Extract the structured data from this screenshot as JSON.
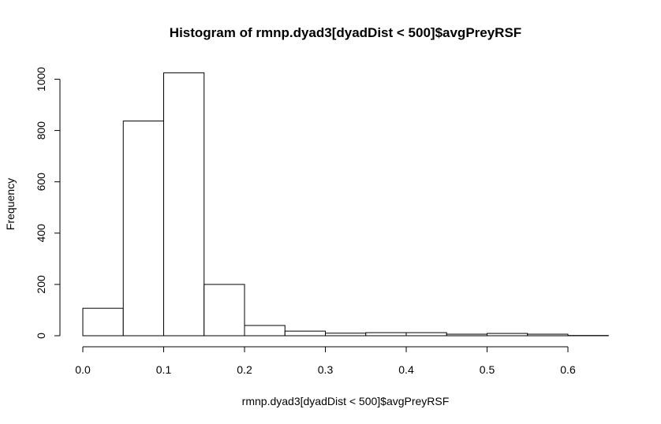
{
  "chart_data": {
    "type": "histogram",
    "title": "Histogram of rmnp.dyad3[dyadDist < 500]$avgPreyRSF",
    "xlabel": "rmnp.dyad3[dyadDist < 500]$avgPreyRSF",
    "ylabel": "Frequency",
    "bin_width": 0.05,
    "bins": [
      {
        "start": 0.0,
        "end": 0.05,
        "count": 107
      },
      {
        "start": 0.05,
        "end": 0.1,
        "count": 837
      },
      {
        "start": 0.1,
        "end": 0.15,
        "count": 1025
      },
      {
        "start": 0.15,
        "end": 0.2,
        "count": 200
      },
      {
        "start": 0.2,
        "end": 0.25,
        "count": 40
      },
      {
        "start": 0.25,
        "end": 0.3,
        "count": 18
      },
      {
        "start": 0.3,
        "end": 0.35,
        "count": 10
      },
      {
        "start": 0.35,
        "end": 0.4,
        "count": 12
      },
      {
        "start": 0.4,
        "end": 0.45,
        "count": 12
      },
      {
        "start": 0.45,
        "end": 0.5,
        "count": 6
      },
      {
        "start": 0.5,
        "end": 0.55,
        "count": 9
      },
      {
        "start": 0.55,
        "end": 0.6,
        "count": 6
      },
      {
        "start": 0.6,
        "end": 0.65,
        "count": 1
      }
    ],
    "xticks": [
      0.0,
      0.1,
      0.2,
      0.3,
      0.4,
      0.5,
      0.6
    ],
    "xtick_labels": [
      "0.0",
      "0.1",
      "0.2",
      "0.3",
      "0.4",
      "0.5",
      "0.6"
    ],
    "yticks": [
      0,
      200,
      400,
      600,
      800,
      1000
    ],
    "ytick_labels": [
      "0",
      "200",
      "400",
      "600",
      "800",
      "1000"
    ],
    "xlim": [
      0.0,
      0.65
    ],
    "ylim": [
      0,
      1025
    ],
    "grid": false,
    "legend": "none",
    "bar_fill": "#ffffff",
    "bar_stroke": "#000000"
  }
}
